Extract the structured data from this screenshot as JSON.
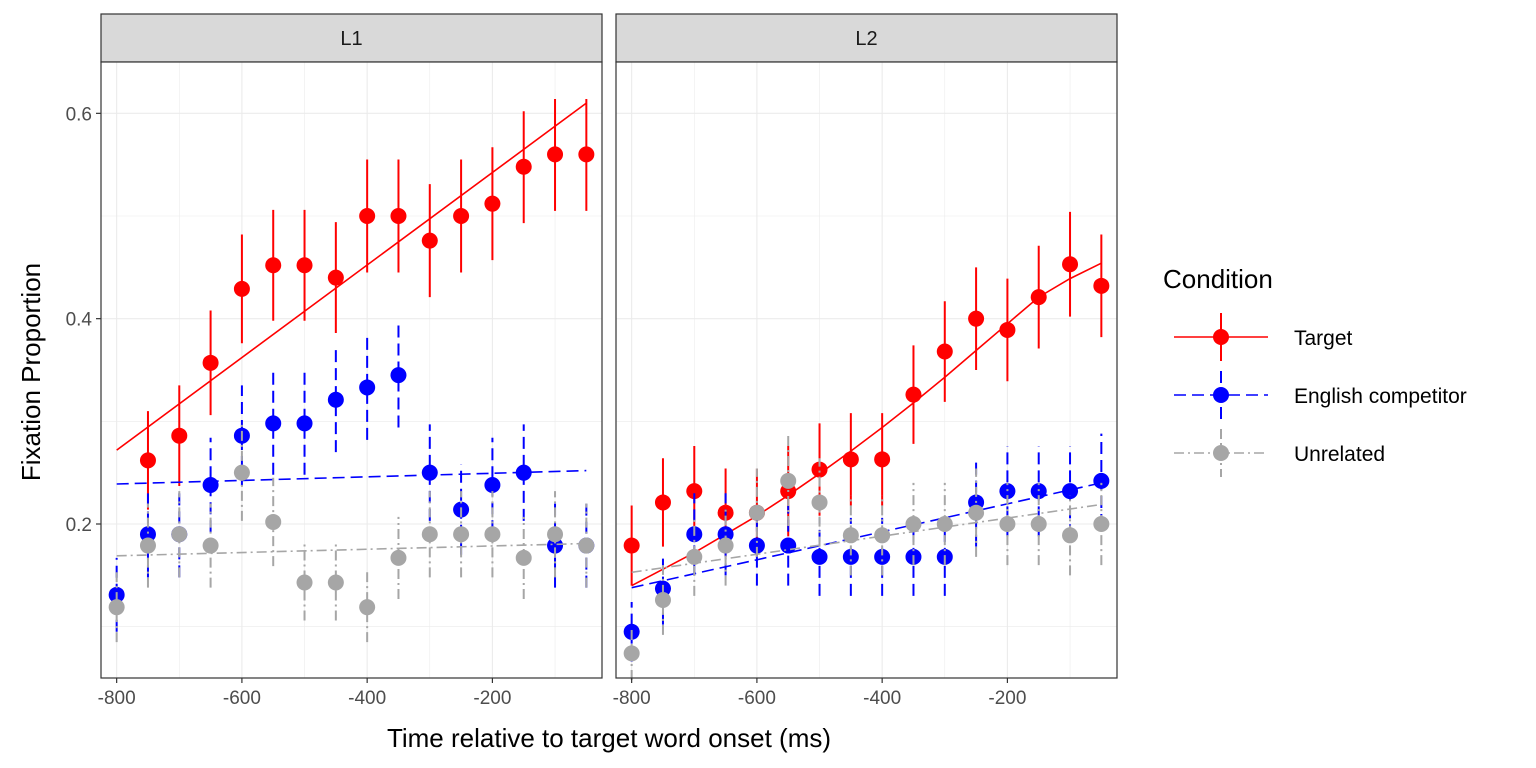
{
  "chart_data": {
    "type": "scatter",
    "facets": [
      "L1",
      "L2"
    ],
    "xlabel": "Time relative to target word onset (ms)",
    "ylabel": "Fixation Proportion",
    "xlim": [
      -825,
      -25
    ],
    "ylim": [
      0.05,
      0.65
    ],
    "xticks": [
      -800,
      -600,
      -400,
      -200
    ],
    "yticks": [
      0.2,
      0.4,
      0.6
    ],
    "ytick_labels": [
      "0.2",
      "0.4",
      "0.6"
    ],
    "xtick_labels": [
      "-800",
      "-600",
      "-400",
      "-200"
    ],
    "grid": true,
    "legend": {
      "title": "Condition",
      "position": "right"
    },
    "series": [
      {
        "name": "Target",
        "color": "#ff0000",
        "dash": "none",
        "panels": {
          "L1": {
            "points": [
              {
                "x": -750,
                "y": 0.262,
                "lo": 0.214,
                "hi": 0.31
              },
              {
                "x": -700,
                "y": 0.286,
                "lo": 0.237,
                "hi": 0.335
              },
              {
                "x": -650,
                "y": 0.357,
                "lo": 0.306,
                "hi": 0.408
              },
              {
                "x": -600,
                "y": 0.429,
                "lo": 0.376,
                "hi": 0.482
              },
              {
                "x": -550,
                "y": 0.452,
                "lo": 0.398,
                "hi": 0.506
              },
              {
                "x": -500,
                "y": 0.452,
                "lo": 0.398,
                "hi": 0.506
              },
              {
                "x": -450,
                "y": 0.44,
                "lo": 0.386,
                "hi": 0.494
              },
              {
                "x": -400,
                "y": 0.5,
                "lo": 0.445,
                "hi": 0.555
              },
              {
                "x": -350,
                "y": 0.5,
                "lo": 0.445,
                "hi": 0.555
              },
              {
                "x": -300,
                "y": 0.476,
                "lo": 0.421,
                "hi": 0.531
              },
              {
                "x": -250,
                "y": 0.5,
                "lo": 0.445,
                "hi": 0.555
              },
              {
                "x": -200,
                "y": 0.512,
                "lo": 0.457,
                "hi": 0.567
              },
              {
                "x": -150,
                "y": 0.548,
                "lo": 0.493,
                "hi": 0.602
              },
              {
                "x": -100,
                "y": 0.56,
                "lo": 0.505,
                "hi": 0.614
              },
              {
                "x": -50,
                "y": 0.56,
                "lo": 0.505,
                "hi": 0.614
              }
            ],
            "fit": [
              [
                -800,
                0.272
              ],
              [
                -50,
                0.61
              ]
            ]
          },
          "L2": {
            "points": [
              {
                "x": -800,
                "y": 0.179,
                "lo": 0.14,
                "hi": 0.218
              },
              {
                "x": -750,
                "y": 0.221,
                "lo": 0.178,
                "hi": 0.264
              },
              {
                "x": -700,
                "y": 0.232,
                "lo": 0.188,
                "hi": 0.276
              },
              {
                "x": -650,
                "y": 0.211,
                "lo": 0.168,
                "hi": 0.254
              },
              {
                "x": -600,
                "y": 0.211,
                "lo": 0.168,
                "hi": 0.254
              },
              {
                "x": -550,
                "y": 0.232,
                "lo": 0.188,
                "hi": 0.276
              },
              {
                "x": -500,
                "y": 0.253,
                "lo": 0.208,
                "hi": 0.298
              },
              {
                "x": -450,
                "y": 0.263,
                "lo": 0.218,
                "hi": 0.308
              },
              {
                "x": -400,
                "y": 0.263,
                "lo": 0.218,
                "hi": 0.308
              },
              {
                "x": -350,
                "y": 0.326,
                "lo": 0.278,
                "hi": 0.374
              },
              {
                "x": -300,
                "y": 0.368,
                "lo": 0.319,
                "hi": 0.417
              },
              {
                "x": -250,
                "y": 0.4,
                "lo": 0.35,
                "hi": 0.45
              },
              {
                "x": -200,
                "y": 0.389,
                "lo": 0.339,
                "hi": 0.439
              },
              {
                "x": -150,
                "y": 0.421,
                "lo": 0.371,
                "hi": 0.471
              },
              {
                "x": -100,
                "y": 0.453,
                "lo": 0.402,
                "hi": 0.504
              },
              {
                "x": -50,
                "y": 0.432,
                "lo": 0.382,
                "hi": 0.482
              }
            ],
            "fit": [
              [
                -800,
                0.14
              ],
              [
                -750,
                0.156
              ],
              [
                -700,
                0.172
              ],
              [
                -650,
                0.19
              ],
              [
                -600,
                0.208
              ],
              [
                -550,
                0.228
              ],
              [
                -500,
                0.249
              ],
              [
                -450,
                0.271
              ],
              [
                -400,
                0.294
              ],
              [
                -350,
                0.318
              ],
              [
                -300,
                0.343
              ],
              [
                -250,
                0.369
              ],
              [
                -200,
                0.395
              ],
              [
                -150,
                0.421
              ],
              [
                -100,
                0.439
              ],
              [
                -50,
                0.454
              ]
            ]
          }
        }
      },
      {
        "name": "English competitor",
        "color": "#0000ff",
        "dash": "12 6",
        "panels": {
          "L1": {
            "points": [
              {
                "x": -800,
                "y": 0.131,
                "lo": 0.095,
                "hi": 0.167
              },
              {
                "x": -750,
                "y": 0.19,
                "lo": 0.148,
                "hi": 0.232
              },
              {
                "x": -700,
                "y": 0.19,
                "lo": 0.148,
                "hi": 0.232
              },
              {
                "x": -650,
                "y": 0.238,
                "lo": 0.192,
                "hi": 0.284
              },
              {
                "x": -600,
                "y": 0.286,
                "lo": 0.237,
                "hi": 0.335
              },
              {
                "x": -550,
                "y": 0.298,
                "lo": 0.248,
                "hi": 0.348
              },
              {
                "x": -500,
                "y": 0.298,
                "lo": 0.248,
                "hi": 0.348
              },
              {
                "x": -450,
                "y": 0.321,
                "lo": 0.27,
                "hi": 0.372
              },
              {
                "x": -400,
                "y": 0.333,
                "lo": 0.282,
                "hi": 0.384
              },
              {
                "x": -350,
                "y": 0.345,
                "lo": 0.294,
                "hi": 0.396
              },
              {
                "x": -300,
                "y": 0.25,
                "lo": 0.203,
                "hi": 0.297
              },
              {
                "x": -250,
                "y": 0.214,
                "lo": 0.17,
                "hi": 0.258
              },
              {
                "x": -200,
                "y": 0.238,
                "lo": 0.192,
                "hi": 0.284
              },
              {
                "x": -150,
                "y": 0.25,
                "lo": 0.203,
                "hi": 0.297
              },
              {
                "x": -100,
                "y": 0.179,
                "lo": 0.138,
                "hi": 0.22
              },
              {
                "x": -50,
                "y": 0.179,
                "lo": 0.138,
                "hi": 0.22
              }
            ],
            "fit": [
              [
                -800,
                0.239
              ],
              [
                -50,
                0.252
              ]
            ]
          },
          "L2": {
            "points": [
              {
                "x": -800,
                "y": 0.095,
                "lo": 0.066,
                "hi": 0.124
              },
              {
                "x": -750,
                "y": 0.137,
                "lo": 0.102,
                "hi": 0.172
              },
              {
                "x": -700,
                "y": 0.19,
                "lo": 0.15,
                "hi": 0.23
              },
              {
                "x": -650,
                "y": 0.19,
                "lo": 0.15,
                "hi": 0.23
              },
              {
                "x": -600,
                "y": 0.179,
                "lo": 0.14,
                "hi": 0.218
              },
              {
                "x": -550,
                "y": 0.179,
                "lo": 0.14,
                "hi": 0.218
              },
              {
                "x": -500,
                "y": 0.168,
                "lo": 0.13,
                "hi": 0.206
              },
              {
                "x": -450,
                "y": 0.168,
                "lo": 0.13,
                "hi": 0.206
              },
              {
                "x": -400,
                "y": 0.168,
                "lo": 0.13,
                "hi": 0.206
              },
              {
                "x": -350,
                "y": 0.168,
                "lo": 0.13,
                "hi": 0.206
              },
              {
                "x": -300,
                "y": 0.168,
                "lo": 0.13,
                "hi": 0.206
              },
              {
                "x": -250,
                "y": 0.221,
                "lo": 0.178,
                "hi": 0.264
              },
              {
                "x": -200,
                "y": 0.232,
                "lo": 0.188,
                "hi": 0.276
              },
              {
                "x": -150,
                "y": 0.232,
                "lo": 0.188,
                "hi": 0.276
              },
              {
                "x": -100,
                "y": 0.232,
                "lo": 0.188,
                "hi": 0.276
              },
              {
                "x": -50,
                "y": 0.242,
                "lo": 0.198,
                "hi": 0.288
              }
            ],
            "fit": [
              [
                -800,
                0.138
              ],
              [
                -50,
                0.24
              ]
            ]
          }
        }
      },
      {
        "name": "Unrelated",
        "color": "#a6a6a6",
        "dash": "10 4 2 4",
        "panels": {
          "L1": {
            "points": [
              {
                "x": -800,
                "y": 0.119,
                "lo": 0.085,
                "hi": 0.153
              },
              {
                "x": -750,
                "y": 0.179,
                "lo": 0.138,
                "hi": 0.22
              },
              {
                "x": -700,
                "y": 0.19,
                "lo": 0.148,
                "hi": 0.232
              },
              {
                "x": -650,
                "y": 0.179,
                "lo": 0.138,
                "hi": 0.22
              },
              {
                "x": -600,
                "y": 0.25,
                "lo": 0.203,
                "hi": 0.297
              },
              {
                "x": -550,
                "y": 0.202,
                "lo": 0.159,
                "hi": 0.245
              },
              {
                "x": -500,
                "y": 0.143,
                "lo": 0.106,
                "hi": 0.18
              },
              {
                "x": -450,
                "y": 0.143,
                "lo": 0.106,
                "hi": 0.18
              },
              {
                "x": -400,
                "y": 0.119,
                "lo": 0.085,
                "hi": 0.153
              },
              {
                "x": -350,
                "y": 0.167,
                "lo": 0.127,
                "hi": 0.207
              },
              {
                "x": -300,
                "y": 0.19,
                "lo": 0.148,
                "hi": 0.232
              },
              {
                "x": -250,
                "y": 0.19,
                "lo": 0.148,
                "hi": 0.232
              },
              {
                "x": -200,
                "y": 0.19,
                "lo": 0.148,
                "hi": 0.232
              },
              {
                "x": -150,
                "y": 0.167,
                "lo": 0.127,
                "hi": 0.207
              },
              {
                "x": -100,
                "y": 0.19,
                "lo": 0.148,
                "hi": 0.232
              },
              {
                "x": -50,
                "y": 0.179,
                "lo": 0.138,
                "hi": 0.22
              }
            ],
            "fit": [
              [
                -800,
                0.169
              ],
              [
                -50,
                0.181
              ]
            ]
          },
          "L2": {
            "points": [
              {
                "x": -800,
                "y": 0.074,
                "lo": 0.048,
                "hi": 0.1
              },
              {
                "x": -750,
                "y": 0.126,
                "lo": 0.092,
                "hi": 0.16
              },
              {
                "x": -700,
                "y": 0.168,
                "lo": 0.13,
                "hi": 0.206
              },
              {
                "x": -650,
                "y": 0.179,
                "lo": 0.14,
                "hi": 0.218
              },
              {
                "x": -600,
                "y": 0.211,
                "lo": 0.168,
                "hi": 0.254
              },
              {
                "x": -550,
                "y": 0.242,
                "lo": 0.198,
                "hi": 0.286
              },
              {
                "x": -500,
                "y": 0.221,
                "lo": 0.178,
                "hi": 0.264
              },
              {
                "x": -450,
                "y": 0.189,
                "lo": 0.15,
                "hi": 0.228
              },
              {
                "x": -400,
                "y": 0.189,
                "lo": 0.15,
                "hi": 0.228
              },
              {
                "x": -350,
                "y": 0.2,
                "lo": 0.16,
                "hi": 0.24
              },
              {
                "x": -300,
                "y": 0.2,
                "lo": 0.16,
                "hi": 0.24
              },
              {
                "x": -250,
                "y": 0.211,
                "lo": 0.168,
                "hi": 0.254
              },
              {
                "x": -200,
                "y": 0.2,
                "lo": 0.16,
                "hi": 0.24
              },
              {
                "x": -150,
                "y": 0.2,
                "lo": 0.16,
                "hi": 0.24
              },
              {
                "x": -100,
                "y": 0.189,
                "lo": 0.15,
                "hi": 0.228
              },
              {
                "x": -50,
                "y": 0.2,
                "lo": 0.16,
                "hi": 0.24
              }
            ],
            "fit": [
              [
                -800,
                0.153
              ],
              [
                -50,
                0.219
              ]
            ]
          }
        }
      }
    ]
  }
}
